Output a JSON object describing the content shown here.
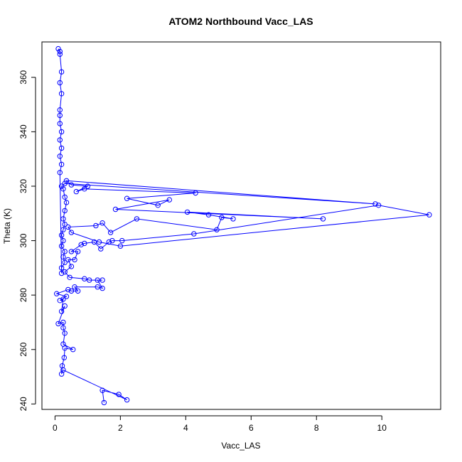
{
  "chart_data": {
    "type": "line",
    "title": "ATOM2 Northbound Vacc_LAS",
    "xlabel": "Vacc_LAS",
    "ylabel": "Theta (K)",
    "xlim": [
      -0.4,
      11.8
    ],
    "ylim": [
      238,
      373
    ],
    "xticks": [
      "0",
      "2",
      "4",
      "6",
      "8",
      "10"
    ],
    "yticks": [
      "240",
      "260",
      "280",
      "300",
      "320",
      "340",
      "360"
    ],
    "grid": false,
    "legend": "none",
    "series_color": "#0000ff",
    "points": [
      [
        1.5,
        240.5
      ],
      [
        1.45,
        245
      ],
      [
        1.95,
        243.5
      ],
      [
        2.2,
        241.5
      ],
      [
        0.25,
        252.5
      ],
      [
        0.2,
        251
      ],
      [
        0.22,
        254
      ],
      [
        0.28,
        257
      ],
      [
        0.3,
        260.5
      ],
      [
        0.55,
        260
      ],
      [
        0.25,
        262
      ],
      [
        0.3,
        266
      ],
      [
        0.25,
        268
      ],
      [
        0.25,
        270
      ],
      [
        0.1,
        269.5
      ],
      [
        0.3,
        276
      ],
      [
        0.2,
        274
      ],
      [
        0.25,
        278.5
      ],
      [
        0.15,
        278
      ],
      [
        0.35,
        279.5
      ],
      [
        0.05,
        280.5
      ],
      [
        0.4,
        282
      ],
      [
        0.5,
        281.5
      ],
      [
        0.7,
        281.5
      ],
      [
        0.6,
        283
      ],
      [
        1.3,
        283
      ],
      [
        1.45,
        282.5
      ],
      [
        1.3,
        285.5
      ],
      [
        1.45,
        285.5
      ],
      [
        1.05,
        285.5
      ],
      [
        0.9,
        286
      ],
      [
        0.45,
        286.5
      ],
      [
        0.3,
        288.5
      ],
      [
        0.5,
        290.5
      ],
      [
        0.4,
        293
      ],
      [
        0.6,
        293
      ],
      [
        0.7,
        296
      ],
      [
        0.5,
        296
      ],
      [
        0.8,
        298.5
      ],
      [
        0.9,
        299
      ],
      [
        1.2,
        299.5
      ],
      [
        1.4,
        297
      ],
      [
        1.65,
        299.5
      ],
      [
        1.75,
        300
      ],
      [
        2.05,
        300
      ],
      [
        4.25,
        302.5
      ],
      [
        9.9,
        313
      ],
      [
        11.45,
        309.5
      ],
      [
        2.0,
        298
      ],
      [
        1.35,
        299.5
      ],
      [
        0.5,
        303
      ],
      [
        0.4,
        305
      ],
      [
        1.25,
        305.5
      ],
      [
        1.45,
        306.5
      ],
      [
        1.7,
        303
      ],
      [
        2.5,
        308
      ],
      [
        4.95,
        304
      ],
      [
        5.1,
        308.5
      ],
      [
        5.45,
        308
      ],
      [
        4.7,
        309.5
      ],
      [
        4.05,
        310.5
      ],
      [
        8.2,
        308
      ],
      [
        1.85,
        311.5
      ],
      [
        3.5,
        315
      ],
      [
        3.15,
        313
      ],
      [
        2.2,
        315.5
      ],
      [
        4.3,
        317.5
      ],
      [
        0.9,
        319
      ],
      [
        0.65,
        318
      ],
      [
        1.0,
        320
      ],
      [
        0.5,
        320.5
      ],
      [
        0.35,
        322
      ],
      [
        9.8,
        313.5
      ],
      [
        0.3,
        321
      ],
      [
        0.2,
        320
      ],
      [
        0.25,
        319
      ],
      [
        0.3,
        316
      ],
      [
        0.35,
        314
      ],
      [
        0.3,
        311
      ],
      [
        0.25,
        308
      ],
      [
        0.3,
        306
      ],
      [
        0.25,
        304
      ],
      [
        0.2,
        302
      ],
      [
        0.25,
        300
      ],
      [
        0.2,
        298
      ],
      [
        0.3,
        296
      ],
      [
        0.25,
        294
      ],
      [
        0.3,
        292
      ],
      [
        0.2,
        290
      ],
      [
        0.2,
        288
      ],
      [
        0.15,
        325
      ],
      [
        0.2,
        328
      ],
      [
        0.15,
        331
      ],
      [
        0.2,
        334
      ],
      [
        0.15,
        337
      ],
      [
        0.2,
        340
      ],
      [
        0.15,
        343
      ],
      [
        0.15,
        346
      ],
      [
        0.15,
        348
      ],
      [
        0.2,
        354
      ],
      [
        0.15,
        358
      ],
      [
        0.2,
        362
      ],
      [
        0.15,
        368.5
      ],
      [
        0.15,
        369.5
      ],
      [
        0.1,
        370.5
      ]
    ]
  }
}
